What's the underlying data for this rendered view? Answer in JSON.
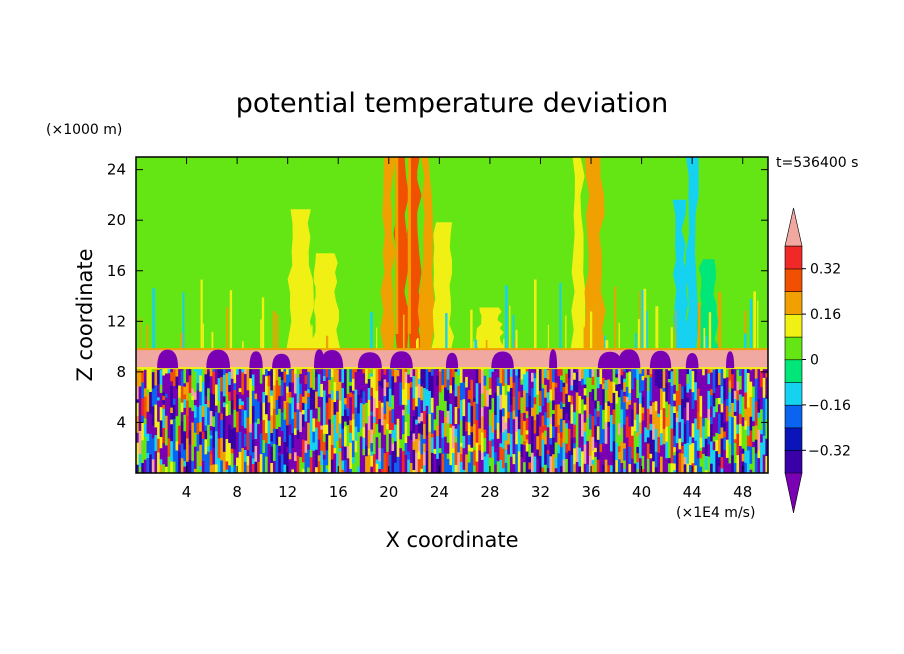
{
  "chart_data": {
    "type": "heatmap",
    "title": "potential temperature deviation",
    "xlabel": "X coordinate",
    "ylabel": "Z coordinate",
    "x_unit": "(×1E4 m/s)",
    "y_unit": "(×1000 m)",
    "time_label": "t=536400 s",
    "xlim": [
      0,
      50
    ],
    "ylim": [
      0,
      25
    ],
    "x_ticks": [
      4,
      8,
      12,
      16,
      20,
      24,
      28,
      32,
      36,
      40,
      44,
      48
    ],
    "y_ticks": [
      4,
      8,
      12,
      16,
      20,
      24
    ],
    "colorbar": {
      "levels": [
        -0.4,
        -0.32,
        -0.24,
        -0.16,
        -0.08,
        0,
        0.08,
        0.16,
        0.24,
        0.32,
        0.4
      ],
      "tick_labels": [
        "0.32",
        "0.16",
        "0",
        "−0.16",
        "−0.32"
      ],
      "tick_values": [
        0.32,
        0.16,
        0,
        -0.16,
        -0.32
      ],
      "colors": [
        "#7a00b3",
        "#3a00a8",
        "#0a14b8",
        "#0a64f0",
        "#14d2f0",
        "#00e678",
        "#64e614",
        "#f0f014",
        "#f0a000",
        "#f05000",
        "#f02828",
        "#f0a8a0"
      ],
      "extend": "both"
    },
    "layers": {
      "stratosphere": {
        "z_range": [
          9.8,
          25
        ],
        "background_value": 0.02
      },
      "warm_band": {
        "z_range": [
          8.3,
          9.8
        ],
        "value": 0.42
      },
      "boundary_layer": {
        "z_range": [
          0,
          8.3
        ],
        "value_range": [
          -0.42,
          0.42
        ]
      }
    },
    "x_columns": [
      0,
      2,
      4,
      6,
      8,
      10,
      12,
      14,
      16,
      18,
      19.5,
      20.5,
      21.5,
      22.5,
      23.5,
      25,
      27,
      29,
      31,
      33,
      34.5,
      35.5,
      37,
      39,
      41,
      42.5,
      43.5,
      44.5,
      46,
      48,
      50
    ],
    "upper_values": [
      0.02,
      0.03,
      0.06,
      0.05,
      0.07,
      0.04,
      0.08,
      0.09,
      0.06,
      0.02,
      0.17,
      0.28,
      0.3,
      0.16,
      0.09,
      0.05,
      0.08,
      0.05,
      0.07,
      0.04,
      0.12,
      0.18,
      0.06,
      0.05,
      0.03,
      -0.1,
      -0.14,
      -0.06,
      0.04,
      0.07,
      0.03
    ],
    "blob_x": [
      2.5,
      6.5,
      9.5,
      11.5,
      14.5,
      15.5,
      18.5,
      21.0,
      25.0,
      29.0,
      33.0,
      37.5,
      39.0,
      41.5,
      44.0,
      47.0
    ]
  }
}
